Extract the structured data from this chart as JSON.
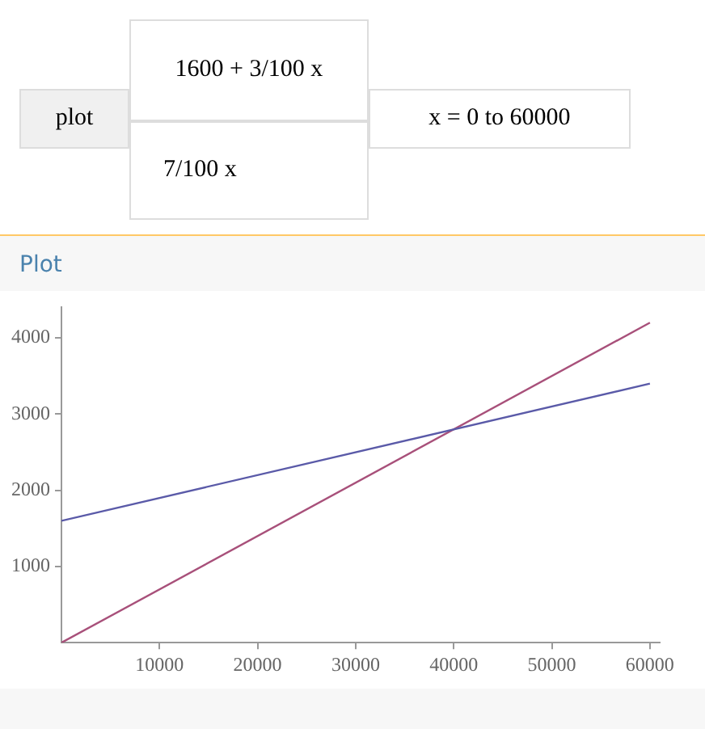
{
  "chart_data": {
    "type": "line",
    "title": "Plot",
    "annotations": [
      "plot",
      "1600 + 3/100 x",
      "7/100 x",
      "x = 0 to 60000"
    ],
    "x": [
      0,
      60000
    ],
    "series": [
      {
        "color": "#5a5aa8",
        "values": [
          1600,
          3400
        ]
      },
      {
        "color": "#a8507a",
        "values": [
          0,
          4200
        ]
      }
    ],
    "xlim": [
      0,
      61000
    ],
    "ylim": [
      0,
      4400
    ],
    "xticks": [
      10000,
      20000,
      30000,
      40000,
      50000,
      60000
    ],
    "yticks": [
      1000,
      2000,
      3000,
      4000
    ],
    "grid": false,
    "legend": false,
    "marker": "none",
    "line_style": "solid"
  }
}
